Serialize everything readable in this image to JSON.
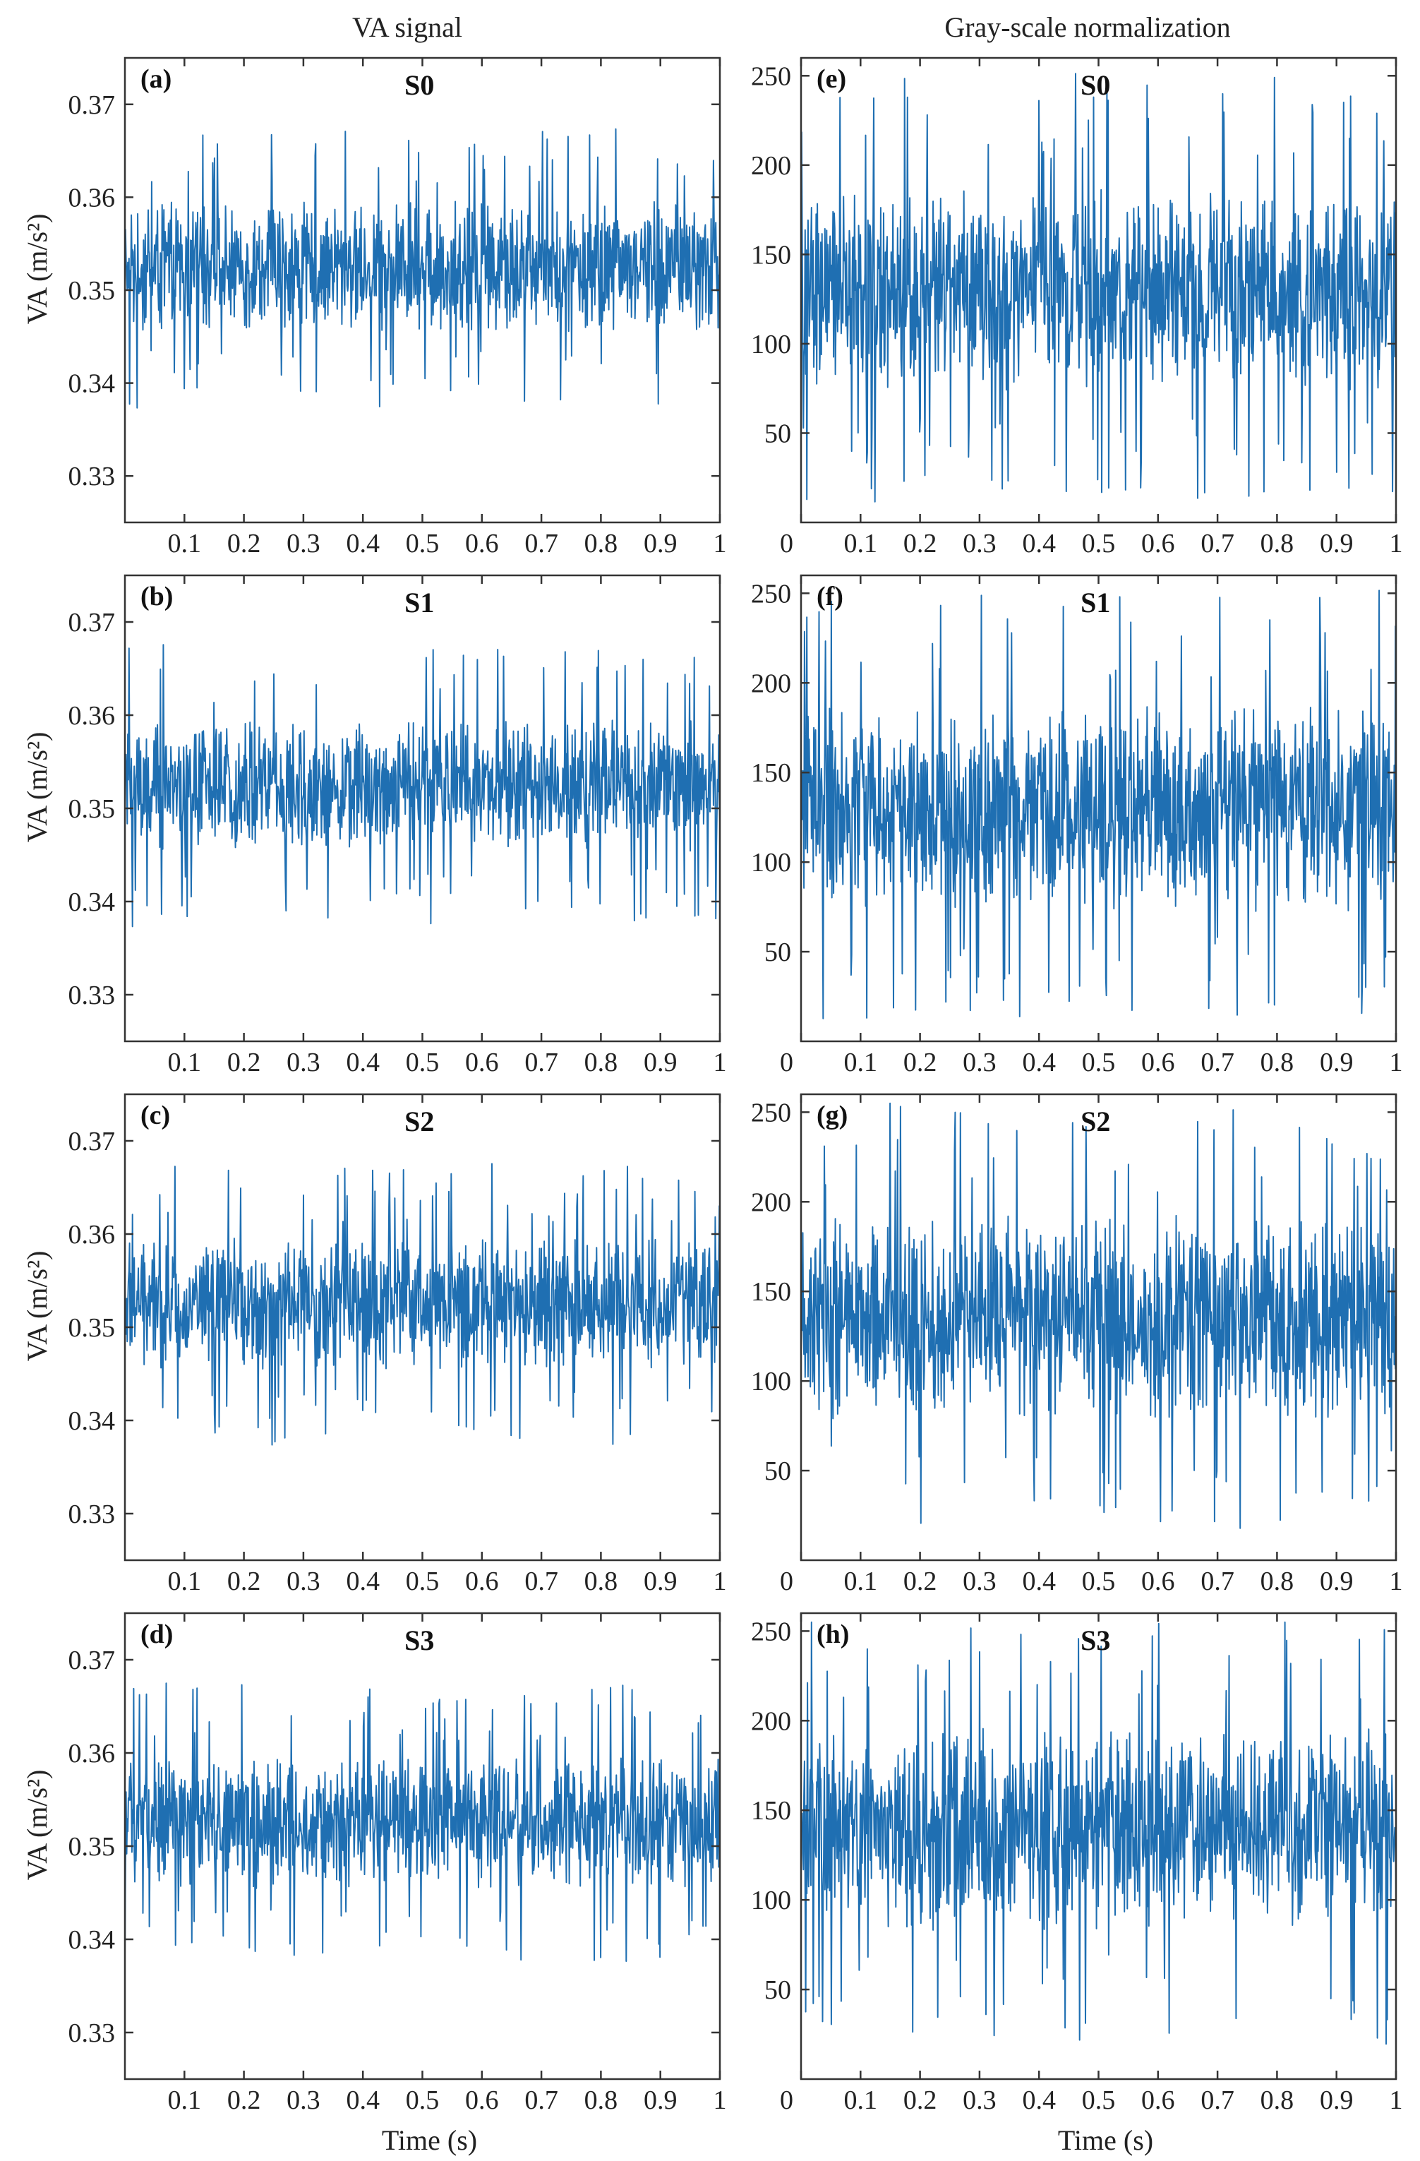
{
  "figure": {
    "column_titles": [
      "VA signal",
      "Gray-scale normalization"
    ],
    "colors": {
      "signal": "#1f6fb2",
      "axes": "#333333",
      "text": "#222222"
    }
  },
  "chart_data": [
    {
      "type": "line",
      "letter": "(a)",
      "title": "S0",
      "ylabel": "VA (m/s²)",
      "xlabel": "",
      "xlim": [
        0,
        1
      ],
      "ylim": [
        0.325,
        0.375
      ],
      "xticks": [
        0.1,
        0.2,
        0.3,
        0.4,
        0.5,
        0.6,
        0.7,
        0.8,
        0.9,
        1
      ],
      "xtick_labels": [
        "0.1",
        "0.2",
        "0.3",
        "0.4",
        "0.5",
        "0.6",
        "0.7",
        "0.8",
        "0.9",
        "1"
      ],
      "yticks": [
        0.33,
        0.34,
        0.35,
        0.36,
        0.37
      ],
      "ytick_labels": [
        "0.33",
        "0.34",
        "0.35",
        "0.36",
        "0.37"
      ],
      "signal": {
        "samples": 1024,
        "mean": 0.3525,
        "spread": 0.004,
        "min": 0.334,
        "max": 0.368
      }
    },
    {
      "type": "line",
      "letter": "(b)",
      "title": "S1",
      "ylabel": "VA (m/s²)",
      "xlabel": "",
      "xlim": [
        0,
        1
      ],
      "ylim": [
        0.325,
        0.375
      ],
      "xticks": [
        0.1,
        0.2,
        0.3,
        0.4,
        0.5,
        0.6,
        0.7,
        0.8,
        0.9,
        1
      ],
      "xtick_labels": [
        "0.1",
        "0.2",
        "0.3",
        "0.4",
        "0.5",
        "0.6",
        "0.7",
        "0.8",
        "0.9",
        "1"
      ],
      "yticks": [
        0.33,
        0.34,
        0.35,
        0.36,
        0.37
      ],
      "ytick_labels": [
        "0.33",
        "0.34",
        "0.35",
        "0.36",
        "0.37"
      ],
      "signal": {
        "samples": 1024,
        "mean": 0.3525,
        "spread": 0.004,
        "min": 0.335,
        "max": 0.37
      }
    },
    {
      "type": "line",
      "letter": "(c)",
      "title": "S2",
      "ylabel": "VA (m/s²)",
      "xlabel": "",
      "xlim": [
        0,
        1
      ],
      "ylim": [
        0.325,
        0.375
      ],
      "xticks": [
        0.1,
        0.2,
        0.3,
        0.4,
        0.5,
        0.6,
        0.7,
        0.8,
        0.9,
        1
      ],
      "xtick_labels": [
        "0.1",
        "0.2",
        "0.3",
        "0.4",
        "0.5",
        "0.6",
        "0.7",
        "0.8",
        "0.9",
        "1"
      ],
      "yticks": [
        0.33,
        0.34,
        0.35,
        0.36,
        0.37
      ],
      "ytick_labels": [
        "0.33",
        "0.34",
        "0.35",
        "0.36",
        "0.37"
      ],
      "signal": {
        "samples": 1024,
        "mean": 0.3525,
        "spread": 0.004,
        "min": 0.333,
        "max": 0.37
      }
    },
    {
      "type": "line",
      "letter": "(d)",
      "title": "S3",
      "ylabel": "VA (m/s²)",
      "xlabel": "Time (s)",
      "xlim": [
        0,
        1
      ],
      "ylim": [
        0.325,
        0.375
      ],
      "xticks": [
        0.1,
        0.2,
        0.3,
        0.4,
        0.5,
        0.6,
        0.7,
        0.8,
        0.9,
        1
      ],
      "xtick_labels": [
        "0.1",
        "0.2",
        "0.3",
        "0.4",
        "0.5",
        "0.6",
        "0.7",
        "0.8",
        "0.9",
        "1"
      ],
      "yticks": [
        0.33,
        0.34,
        0.35,
        0.36,
        0.37
      ],
      "ytick_labels": [
        "0.33",
        "0.34",
        "0.35",
        "0.36",
        "0.37"
      ],
      "signal": {
        "samples": 1024,
        "mean": 0.3525,
        "spread": 0.004,
        "min": 0.332,
        "max": 0.37
      }
    },
    {
      "type": "line",
      "letter": "(e)",
      "title": "S0",
      "ylabel": "",
      "xlabel": "",
      "xlim": [
        0,
        1
      ],
      "ylim": [
        0,
        260
      ],
      "xticks": [
        0,
        0.1,
        0.2,
        0.3,
        0.4,
        0.5,
        0.6,
        0.7,
        0.8,
        0.9,
        1
      ],
      "xtick_labels": [
        "0",
        "0.1",
        "0.2",
        "0.3",
        "0.4",
        "0.5",
        "0.6",
        "0.7",
        "0.8",
        "0.9",
        "1"
      ],
      "yticks": [
        50,
        100,
        150,
        200,
        250
      ],
      "ytick_labels": [
        "50",
        "100",
        "150",
        "200",
        "250"
      ],
      "signal": {
        "samples": 1024,
        "mean": 130,
        "spread": 32,
        "min": 0,
        "max": 255
      }
    },
    {
      "type": "line",
      "letter": "(f)",
      "title": "S1",
      "ylabel": "",
      "xlabel": "",
      "xlim": [
        0,
        1
      ],
      "ylim": [
        0,
        260
      ],
      "xticks": [
        0,
        0.1,
        0.2,
        0.3,
        0.4,
        0.5,
        0.6,
        0.7,
        0.8,
        0.9,
        1
      ],
      "xtick_labels": [
        "0",
        "0.1",
        "0.2",
        "0.3",
        "0.4",
        "0.5",
        "0.6",
        "0.7",
        "0.8",
        "0.9",
        "1"
      ],
      "yticks": [
        50,
        100,
        150,
        200,
        250
      ],
      "ytick_labels": [
        "50",
        "100",
        "150",
        "200",
        "250"
      ],
      "signal": {
        "samples": 1024,
        "mean": 130,
        "spread": 32,
        "min": 0,
        "max": 255
      }
    },
    {
      "type": "line",
      "letter": "(g)",
      "title": "S2",
      "ylabel": "",
      "xlabel": "",
      "xlim": [
        0,
        1
      ],
      "ylim": [
        0,
        260
      ],
      "xticks": [
        0,
        0.1,
        0.2,
        0.3,
        0.4,
        0.5,
        0.6,
        0.7,
        0.8,
        0.9,
        1
      ],
      "xtick_labels": [
        "0",
        "0.1",
        "0.2",
        "0.3",
        "0.4",
        "0.5",
        "0.6",
        "0.7",
        "0.8",
        "0.9",
        "1"
      ],
      "yticks": [
        50,
        100,
        150,
        200,
        250
      ],
      "ytick_labels": [
        "50",
        "100",
        "150",
        "200",
        "250"
      ],
      "signal": {
        "samples": 1024,
        "mean": 135,
        "spread": 32,
        "min": 0,
        "max": 255
      }
    },
    {
      "type": "line",
      "letter": "(h)",
      "title": "S3",
      "ylabel": "",
      "xlabel": "Time (s)",
      "xlim": [
        0,
        1
      ],
      "ylim": [
        0,
        260
      ],
      "xticks": [
        0,
        0.1,
        0.2,
        0.3,
        0.4,
        0.5,
        0.6,
        0.7,
        0.8,
        0.9,
        1
      ],
      "xtick_labels": [
        "0",
        "0.1",
        "0.2",
        "0.3",
        "0.4",
        "0.5",
        "0.6",
        "0.7",
        "0.8",
        "0.9",
        "1"
      ],
      "yticks": [
        50,
        100,
        150,
        200,
        250
      ],
      "ytick_labels": [
        "50",
        "100",
        "150",
        "200",
        "250"
      ],
      "signal": {
        "samples": 1024,
        "mean": 140,
        "spread": 32,
        "min": 0,
        "max": 255
      }
    }
  ]
}
